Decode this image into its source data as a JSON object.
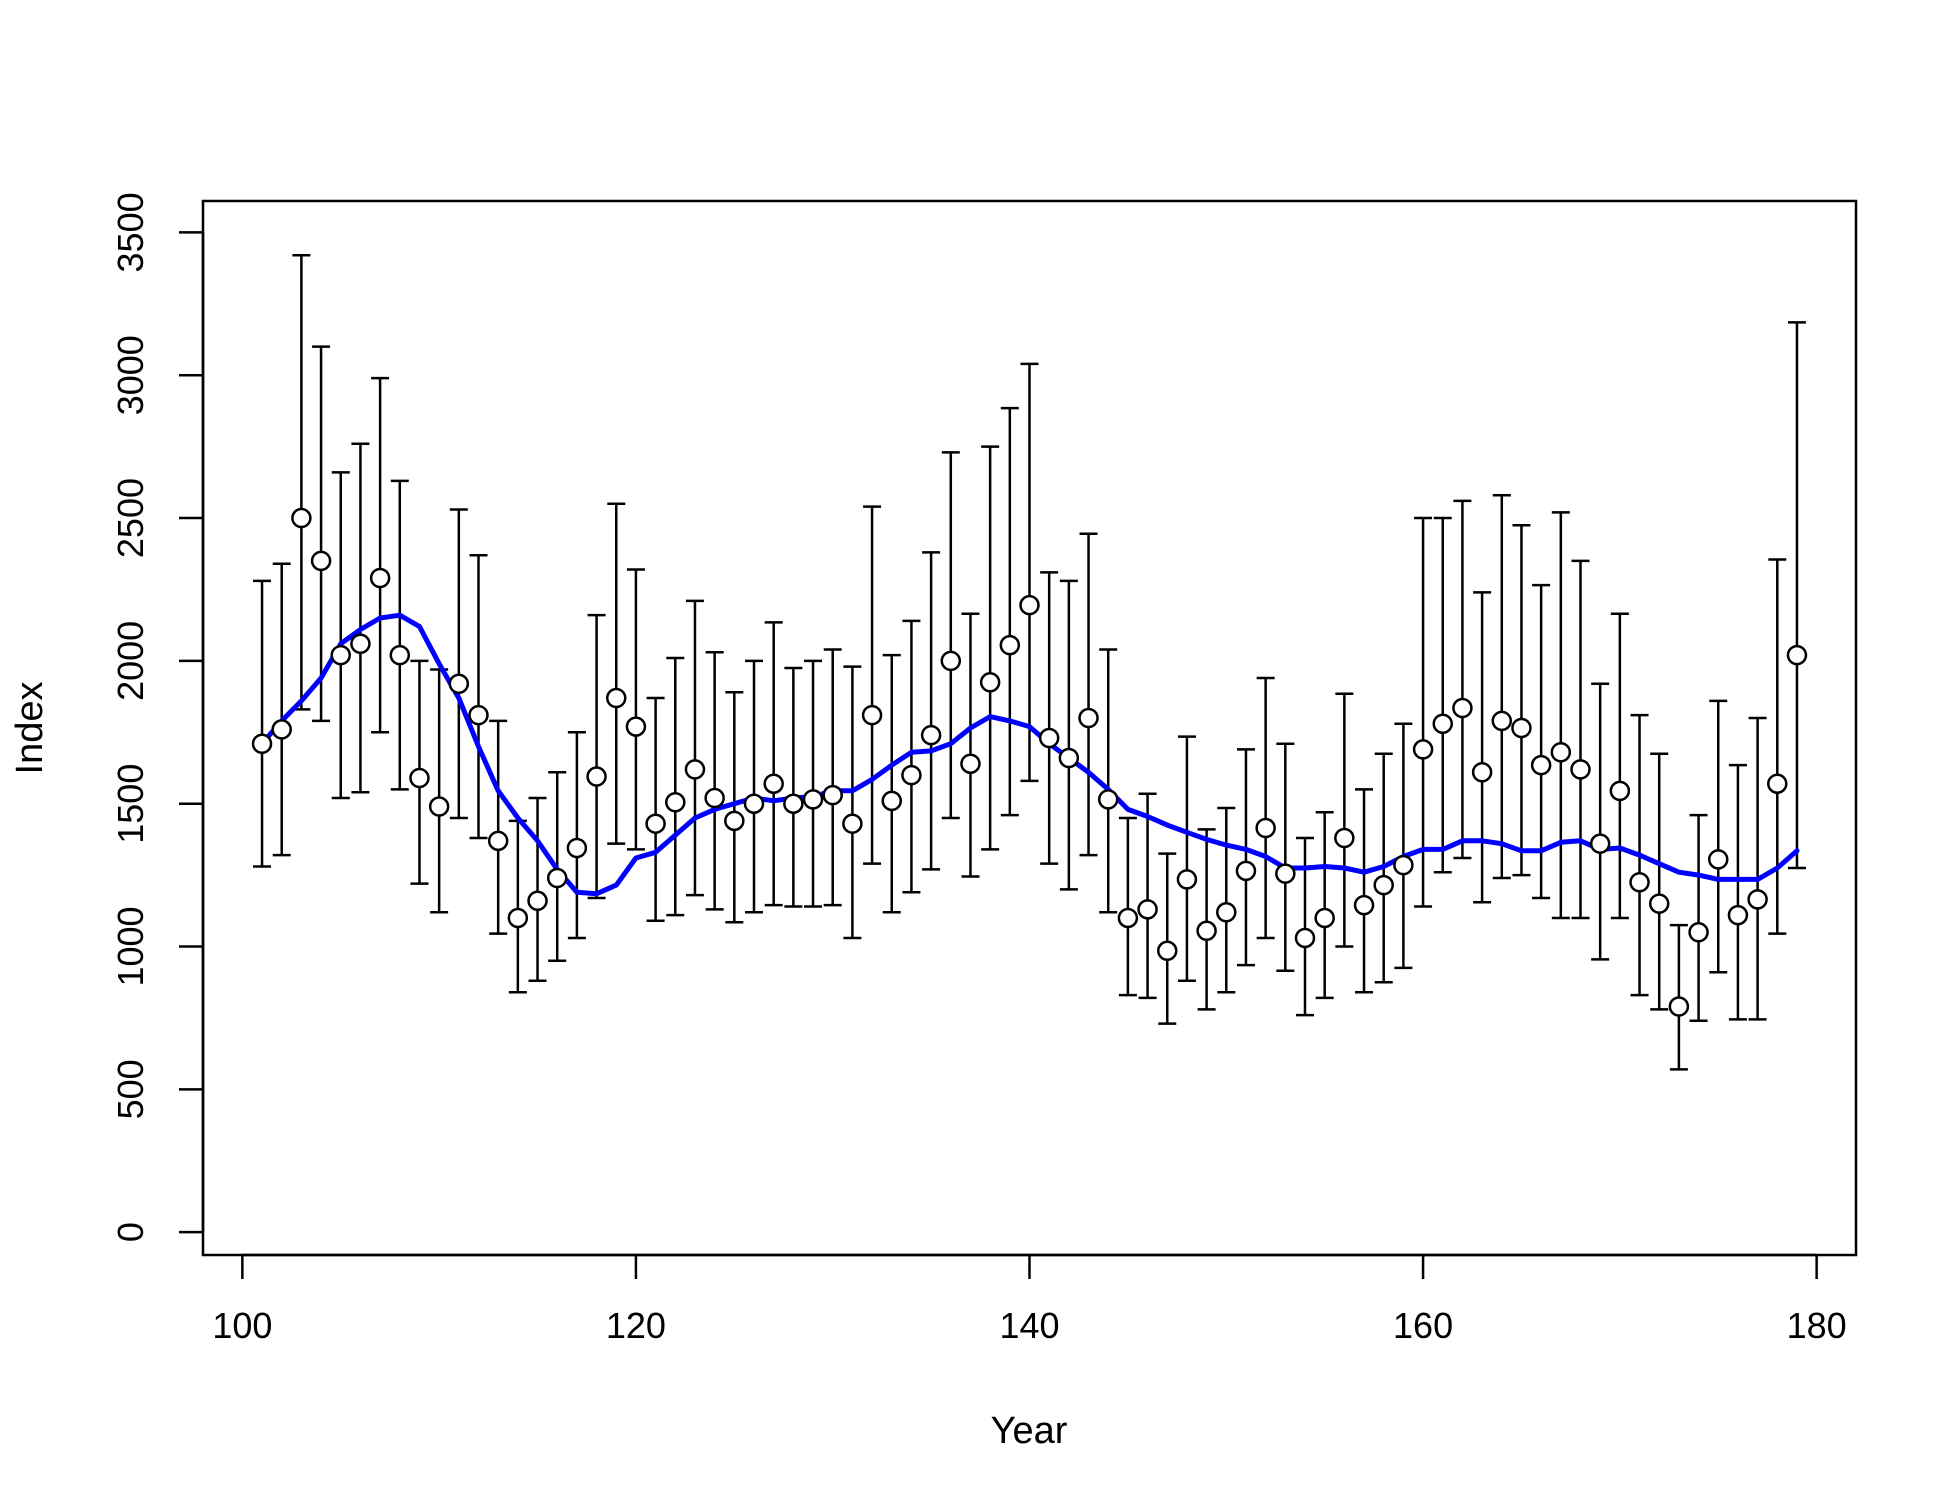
{
  "chart_data": {
    "type": "scatter",
    "title": "",
    "xlabel": "Year",
    "ylabel": "Index",
    "xlim": [
      98,
      182
    ],
    "ylim": [
      -80,
      3610
    ],
    "x_ticks": [
      100,
      120,
      140,
      160,
      180
    ],
    "y_ticks": [
      0,
      500,
      1000,
      1500,
      2000,
      2500,
      3000,
      3500
    ],
    "grid": false,
    "legend": "none",
    "colors": {
      "points": "#000000",
      "errorbars": "#000000",
      "fitted_line": "#0000ff"
    },
    "series": [
      {
        "type": "scatter-errorbar",
        "x": [
          101,
          102,
          103,
          104,
          105,
          106,
          107,
          108,
          109,
          110,
          111,
          112,
          113,
          114,
          115,
          116,
          117,
          118,
          119,
          120,
          121,
          122,
          123,
          124,
          125,
          126,
          127,
          128,
          129,
          130,
          131,
          132,
          133,
          134,
          135,
          136,
          137,
          138,
          139,
          140,
          141,
          142,
          143,
          144,
          145,
          146,
          147,
          148,
          149,
          150,
          151,
          152,
          153,
          154,
          155,
          156,
          157,
          158,
          159,
          160,
          161,
          162,
          163,
          164,
          165,
          166,
          167,
          168,
          169,
          170,
          171,
          172,
          173,
          174,
          175,
          176,
          177,
          178,
          179
        ],
        "y": [
          1710,
          1760,
          2500,
          2350,
          2020,
          2060,
          2290,
          2020,
          1590,
          1490,
          1920,
          1810,
          1370,
          1100,
          1160,
          1240,
          1345,
          1595,
          1870,
          1770,
          1430,
          1505,
          1620,
          1520,
          1440,
          1500,
          1570,
          1500,
          1515,
          1530,
          1430,
          1810,
          1510,
          1600,
          1740,
          2000,
          1640,
          1925,
          2055,
          2195,
          1730,
          1660,
          1800,
          1515,
          1100,
          1130,
          985,
          1235,
          1055,
          1120,
          1265,
          1415,
          1255,
          1030,
          1100,
          1380,
          1145,
          1215,
          1285,
          1690,
          1780,
          1835,
          1610,
          1790,
          1765,
          1635,
          1680,
          1620,
          1360,
          1545,
          1225,
          1150,
          790,
          1050,
          1305,
          1110,
          1165,
          1570,
          2020
        ],
        "lower": [
          1280,
          1320,
          1830,
          1790,
          1520,
          1540,
          1750,
          1550,
          1220,
          1120,
          1450,
          1380,
          1045,
          840,
          880,
          950,
          1030,
          1170,
          1360,
          1340,
          1090,
          1110,
          1180,
          1130,
          1085,
          1120,
          1145,
          1140,
          1140,
          1145,
          1030,
          1290,
          1120,
          1190,
          1270,
          1450,
          1245,
          1340,
          1460,
          1580,
          1290,
          1200,
          1320,
          1120,
          830,
          820,
          730,
          880,
          780,
          840,
          935,
          1030,
          915,
          760,
          820,
          1000,
          840,
          875,
          925,
          1140,
          1260,
          1310,
          1155,
          1240,
          1250,
          1170,
          1100,
          1100,
          955,
          1100,
          830,
          780,
          570,
          740,
          910,
          745,
          745,
          1045,
          1275
        ],
        "upper": [
          2280,
          2340,
          3420,
          3100,
          2660,
          2760,
          2990,
          2630,
          2000,
          1970,
          2530,
          2370,
          1790,
          1440,
          1520,
          1610,
          1750,
          2160,
          2550,
          2320,
          1870,
          2010,
          2210,
          2030,
          1890,
          2000,
          2135,
          1975,
          2000,
          2040,
          1980,
          2540,
          2020,
          2140,
          2380,
          2730,
          2165,
          2750,
          2885,
          3040,
          2310,
          2280,
          2445,
          2040,
          1450,
          1535,
          1325,
          1735,
          1410,
          1485,
          1690,
          1940,
          1710,
          1380,
          1470,
          1885,
          1550,
          1675,
          1780,
          2500,
          2500,
          2560,
          2240,
          2580,
          2475,
          2265,
          2520,
          2350,
          1920,
          2165,
          1810,
          1675,
          1075,
          1460,
          1860,
          1635,
          1800,
          2355,
          3185
        ]
      },
      {
        "type": "line",
        "x": [
          101,
          102,
          103,
          104,
          105,
          106,
          107,
          108,
          109,
          110,
          111,
          112,
          113,
          114,
          115,
          116,
          117,
          118,
          119,
          120,
          121,
          122,
          123,
          124,
          125,
          126,
          127,
          128,
          129,
          130,
          131,
          132,
          133,
          134,
          135,
          136,
          137,
          138,
          139,
          140,
          141,
          142,
          143,
          144,
          145,
          146,
          147,
          148,
          149,
          150,
          151,
          152,
          153,
          154,
          155,
          156,
          157,
          158,
          159,
          160,
          161,
          162,
          163,
          164,
          165,
          166,
          167,
          168,
          169,
          170,
          171,
          172,
          173,
          174,
          175,
          176,
          177,
          178,
          179
        ],
        "y": [
          1710,
          1790,
          1860,
          1940,
          2060,
          2110,
          2150,
          2160,
          2120,
          1990,
          1870,
          1700,
          1545,
          1450,
          1370,
          1270,
          1190,
          1185,
          1215,
          1310,
          1330,
          1390,
          1450,
          1480,
          1500,
          1520,
          1510,
          1520,
          1525,
          1545,
          1545,
          1585,
          1635,
          1680,
          1685,
          1710,
          1765,
          1805,
          1790,
          1770,
          1710,
          1660,
          1610,
          1550,
          1480,
          1455,
          1425,
          1400,
          1375,
          1355,
          1340,
          1315,
          1275,
          1275,
          1280,
          1275,
          1260,
          1280,
          1315,
          1340,
          1340,
          1370,
          1370,
          1360,
          1335,
          1335,
          1365,
          1370,
          1340,
          1345,
          1320,
          1290,
          1260,
          1250,
          1235,
          1235,
          1235,
          1275,
          1335
        ]
      }
    ]
  }
}
